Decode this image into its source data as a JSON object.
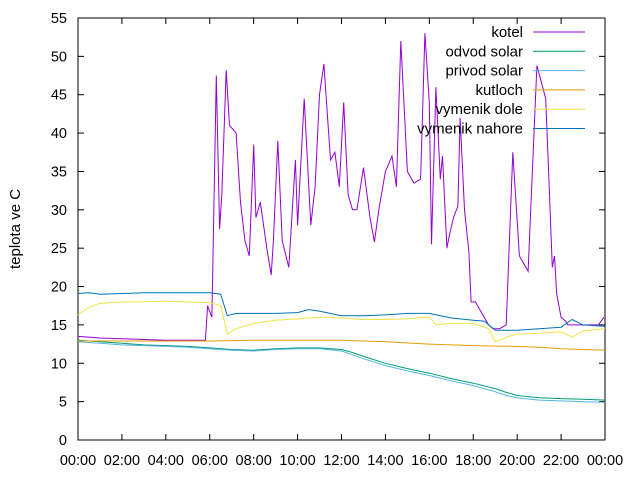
{
  "chart_data": {
    "type": "line",
    "ylabel": "teplota ve C",
    "xlabel": "",
    "title": "",
    "ylim": [
      0,
      55
    ],
    "y_ticks": [
      "0",
      "5",
      "10",
      "15",
      "20",
      "25",
      "30",
      "35",
      "40",
      "45",
      "50",
      "55"
    ],
    "xlim": [
      0,
      24
    ],
    "x_ticks": [
      "00:00",
      "02:00",
      "04:00",
      "06:00",
      "08:00",
      "10:00",
      "12:00",
      "14:00",
      "16:00",
      "18:00",
      "20:00",
      "22:00",
      "00:00"
    ],
    "grid": false,
    "legend_position": "top-right",
    "series": [
      {
        "name": "kotel",
        "color": "#9400d3",
        "x": [
          0,
          1,
          2,
          3,
          4,
          5,
          5.8,
          5.9,
          6.1,
          6.3,
          6.45,
          6.55,
          6.75,
          6.9,
          7.2,
          7.4,
          7.6,
          7.8,
          8.0,
          8.1,
          8.3,
          8.6,
          8.8,
          8.9,
          9.1,
          9.3,
          9.6,
          9.9,
          10.0,
          10.3,
          10.6,
          10.8,
          11.0,
          11.2,
          11.5,
          11.7,
          11.9,
          12.1,
          12.3,
          12.5,
          12.7,
          13.0,
          13.3,
          13.5,
          13.7,
          14.0,
          14.3,
          14.5,
          14.7,
          15.0,
          15.3,
          15.6,
          15.8,
          16.0,
          16.1,
          16.3,
          16.5,
          16.6,
          16.8,
          16.9,
          17.1,
          17.3,
          17.4,
          17.6,
          17.8,
          17.9,
          18.1,
          18.3,
          18.5,
          18.7,
          18.9,
          19.2,
          19.5,
          19.8,
          20.1,
          20.5,
          20.9,
          21.3,
          21.5,
          21.6,
          21.7,
          21.8,
          22.0,
          22.2,
          22.3,
          22.5,
          22.8,
          23.1,
          23.4,
          23.7,
          23.95
        ],
        "values": [
          13.5,
          13.3,
          13.2,
          13.1,
          13.0,
          13.0,
          13.0,
          17.5,
          16.0,
          47.5,
          27.5,
          32.0,
          48.2,
          41.0,
          40.0,
          31.0,
          26.0,
          24.0,
          38.5,
          29.0,
          31.0,
          25.0,
          21.5,
          26.0,
          39.0,
          26.0,
          22.5,
          36.5,
          28.0,
          44.5,
          28.0,
          33.0,
          45.0,
          49.0,
          36.5,
          37.5,
          33.0,
          44.0,
          32.0,
          30.0,
          30.0,
          35.5,
          29.0,
          25.8,
          30.0,
          35.0,
          37.0,
          33.0,
          52.0,
          35.0,
          33.5,
          34.0,
          53.0,
          44.0,
          25.5,
          46.0,
          34.0,
          37.0,
          25.0,
          26.5,
          29.0,
          30.5,
          42.0,
          30.0,
          24.5,
          18.0,
          18.0,
          17.0,
          16.0,
          15.0,
          14.5,
          14.5,
          15.0,
          37.5,
          24.0,
          22.0,
          48.8,
          44.5,
          30.0,
          22.5,
          24.0,
          19.0,
          16.0,
          15.5,
          15.0,
          15.0,
          15.0,
          15.0,
          15.0,
          15.0,
          16.0
        ]
      },
      {
        "name": "odvod solar",
        "color": "#009e73",
        "x": [
          0,
          1,
          2,
          3,
          4,
          5,
          6,
          7,
          8,
          9,
          10,
          11,
          12,
          12.5,
          13,
          14,
          15,
          16,
          17,
          18,
          19,
          19.5,
          20,
          21,
          22,
          23,
          24
        ],
        "values": [
          13.0,
          12.8,
          12.6,
          12.4,
          12.3,
          12.2,
          12.0,
          11.8,
          11.7,
          11.9,
          12.0,
          12.0,
          11.8,
          11.4,
          10.9,
          10.0,
          9.3,
          8.7,
          8.0,
          7.4,
          6.7,
          6.2,
          5.8,
          5.5,
          5.4,
          5.3,
          5.2
        ]
      },
      {
        "name": "privod solar",
        "color": "#56b4e9",
        "x": [
          0,
          1,
          2,
          3,
          4,
          5,
          6,
          7,
          8,
          9,
          10,
          11,
          12,
          12.5,
          13,
          14,
          15,
          16,
          17,
          18,
          19,
          19.5,
          20,
          21,
          22,
          23,
          24
        ],
        "values": [
          12.8,
          12.6,
          12.4,
          12.3,
          12.2,
          12.1,
          11.9,
          11.7,
          11.6,
          11.8,
          11.9,
          11.9,
          11.6,
          11.1,
          10.6,
          9.7,
          9.0,
          8.4,
          7.7,
          7.1,
          6.3,
          5.8,
          5.5,
          5.2,
          5.1,
          5.0,
          4.9
        ]
      },
      {
        "name": "kutloch",
        "color": "#e69f00",
        "x": [
          0,
          2,
          4,
          6,
          8,
          10,
          12,
          14,
          16,
          18,
          20,
          21,
          22,
          23,
          24
        ],
        "values": [
          12.9,
          12.9,
          12.9,
          12.9,
          13.0,
          13.0,
          13.0,
          12.8,
          12.5,
          12.3,
          12.2,
          12.1,
          11.9,
          11.8,
          11.7
        ]
      },
      {
        "name": "vymenik dole",
        "color": "#f0e442",
        "x": [
          0,
          0.5,
          1,
          2,
          3,
          4,
          5,
          6,
          6.5,
          6.8,
          7.2,
          8,
          9,
          10,
          11,
          12,
          13,
          14,
          15,
          16,
          16.3,
          17,
          18,
          18.7,
          19,
          19.5,
          20,
          21,
          22,
          22.5,
          23,
          24
        ],
        "values": [
          16.3,
          17.3,
          17.8,
          18.0,
          18.0,
          18.1,
          18.0,
          17.9,
          17.5,
          13.8,
          14.5,
          15.2,
          15.6,
          15.8,
          16.0,
          15.9,
          15.7,
          15.7,
          15.8,
          16.0,
          15.0,
          15.2,
          15.2,
          14.5,
          12.8,
          13.4,
          13.8,
          13.9,
          14.1,
          13.4,
          14.2,
          14.5
        ]
      },
      {
        "name": "vymenik nahore",
        "color": "#0072b2",
        "x": [
          0,
          0.5,
          1,
          2,
          3,
          4,
          5,
          6,
          6.5,
          6.8,
          7.2,
          8,
          9,
          10,
          10.5,
          11,
          12,
          13,
          14,
          15,
          16,
          17,
          18,
          18.5,
          19,
          20,
          21,
          22,
          22.5,
          23,
          24
        ],
        "values": [
          19.1,
          19.2,
          19.0,
          19.1,
          19.2,
          19.2,
          19.2,
          19.2,
          19.0,
          16.2,
          16.5,
          16.5,
          16.5,
          16.6,
          17.0,
          16.8,
          16.2,
          16.2,
          16.3,
          16.5,
          16.5,
          15.9,
          15.6,
          15.5,
          14.3,
          14.3,
          14.5,
          14.7,
          15.7,
          15.0,
          14.8
        ]
      }
    ]
  }
}
